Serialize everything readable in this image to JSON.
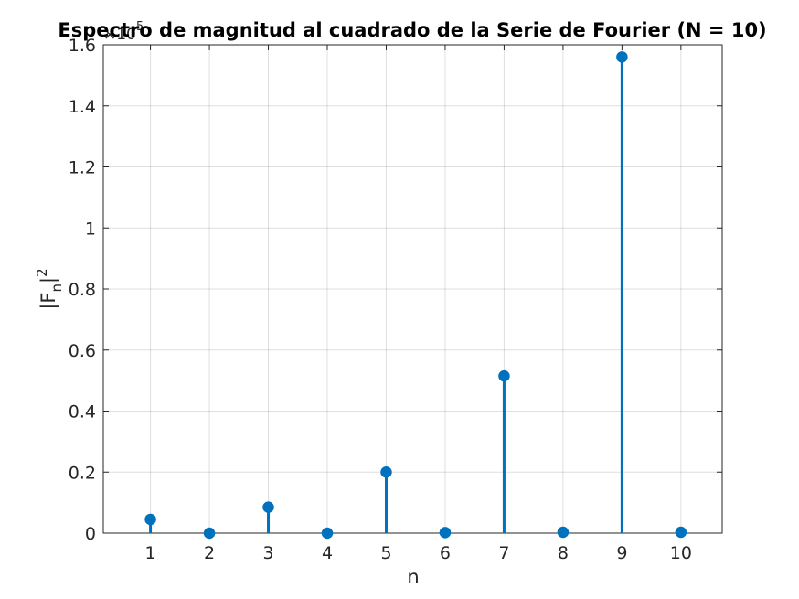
{
  "chart_data": {
    "type": "stem",
    "title": "Espectro de magnitud al cuadrado de la Serie de Fourier (N = 10)",
    "xlabel": "n",
    "ylabel_main": "|F",
    "ylabel_sub": "n",
    "ylabel_end": "|",
    "ylabel_sup": "2",
    "exponent_base": "×10",
    "exponent_power": "5",
    "y_scale_factor": 100000,
    "x": [
      1,
      2,
      3,
      4,
      5,
      6,
      7,
      8,
      9,
      10
    ],
    "values": [
      4500,
      0,
      8500,
      0,
      20000,
      200,
      51500,
      300,
      156000,
      300
    ],
    "xlim": [
      0.2,
      10.7
    ],
    "ylim": [
      0,
      160000
    ],
    "xticks": [
      1,
      2,
      3,
      4,
      5,
      6,
      7,
      8,
      9,
      10
    ],
    "xtick_labels": [
      "1",
      "2",
      "3",
      "4",
      "5",
      "6",
      "7",
      "8",
      "9",
      "10"
    ],
    "yticks": [
      0,
      20000,
      40000,
      60000,
      80000,
      100000,
      120000,
      140000,
      160000
    ],
    "ytick_labels": [
      "0",
      "0.2",
      "0.4",
      "0.6",
      "0.8",
      "1",
      "1.2",
      "1.4",
      "1.6"
    ],
    "grid": true,
    "color": "#0072BD"
  }
}
